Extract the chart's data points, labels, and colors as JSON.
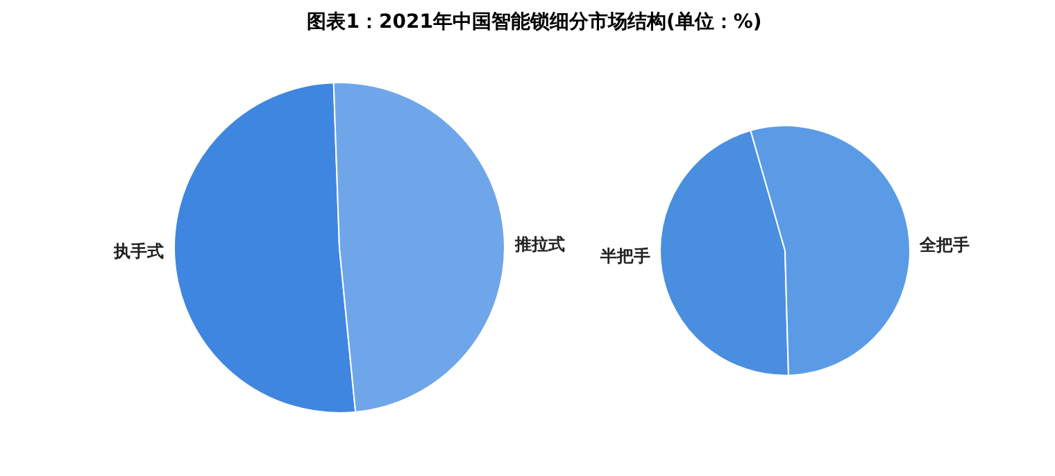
{
  "chart_data": [
    {
      "type": "pie",
      "title": "图表1：2021年中国智能锁细分市场结构(单位：%)",
      "categories": [
        "执手式",
        "推拉式"
      ],
      "values": [
        51,
        49
      ],
      "colors": [
        "#3f86e0",
        "#6fa6ea"
      ]
    },
    {
      "type": "pie",
      "categories": [
        "半把手",
        "全把手"
      ],
      "values": [
        46,
        54
      ],
      "colors": [
        "#4a8ee0",
        "#5b9be6"
      ]
    }
  ]
}
